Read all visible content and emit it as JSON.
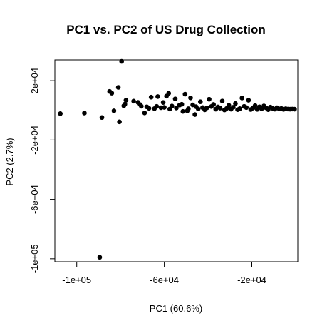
{
  "chart_data": {
    "type": "scatter",
    "title": "PC1 vs. PC2 of US Drug Collection",
    "xlabel": "PC1 (60.6%)",
    "ylabel": "PC2 (2.7%)",
    "xlim": [
      -110000,
      1000
    ],
    "ylim": [
      -102000,
      34000
    ],
    "xticks": [
      {
        "value": -100000,
        "label": "-1e+05"
      },
      {
        "value": -60000,
        "label": "-6e+04"
      },
      {
        "value": -20000,
        "label": "-2e+04"
      }
    ],
    "yticks": [
      {
        "value": 20000,
        "label": "2e+04"
      },
      {
        "value": -20000,
        "label": "-2e+04"
      },
      {
        "value": -60000,
        "label": "-6e+04"
      },
      {
        "value": -100000,
        "label": "-1e+05"
      }
    ],
    "grid": false,
    "legend": "none",
    "marker_color": "#000000",
    "series": [
      {
        "points": [
          [
            -107500,
            -2200
          ],
          [
            -96500,
            -1800
          ],
          [
            -89500,
            -99000
          ],
          [
            -88500,
            -4800
          ],
          [
            -85000,
            12800
          ],
          [
            -84000,
            11600
          ],
          [
            -83000,
            -300
          ],
          [
            -81000,
            15500
          ],
          [
            -80500,
            -7700
          ],
          [
            -79500,
            33000
          ],
          [
            -78500,
            3100
          ],
          [
            -78000,
            4200
          ],
          [
            -77500,
            6800
          ],
          [
            -74000,
            6200
          ],
          [
            -72000,
            5400
          ],
          [
            -71000,
            3900
          ],
          [
            -70500,
            2800
          ],
          [
            -69000,
            -1700
          ],
          [
            -68000,
            2400
          ],
          [
            -67000,
            1400
          ],
          [
            -66000,
            8900
          ],
          [
            -64500,
            1200
          ],
          [
            -63500,
            2700
          ],
          [
            -63000,
            9300
          ],
          [
            -61500,
            1800
          ],
          [
            -60500,
            5300
          ],
          [
            -60000,
            2000
          ],
          [
            -59000,
            9600
          ],
          [
            -58000,
            11500
          ],
          [
            -57500,
            900
          ],
          [
            -56500,
            2900
          ],
          [
            -55000,
            7700
          ],
          [
            -54500,
            1600
          ],
          [
            -53000,
            3600
          ],
          [
            -52000,
            4100
          ],
          [
            -51500,
            -700
          ],
          [
            -50500,
            10900
          ],
          [
            -49500,
            -300
          ],
          [
            -49000,
            1100
          ],
          [
            -48000,
            8400
          ],
          [
            -47000,
            3700
          ],
          [
            -46000,
            -2800
          ],
          [
            -45500,
            2500
          ],
          [
            -44500,
            1000
          ],
          [
            -43500,
            5800
          ],
          [
            -42500,
            1900
          ],
          [
            -41500,
            400
          ],
          [
            -40500,
            1700
          ],
          [
            -39500,
            7500
          ],
          [
            -38500,
            2600
          ],
          [
            -37500,
            4000
          ],
          [
            -36500,
            800
          ],
          [
            -35500,
            2300
          ],
          [
            -34500,
            1500
          ],
          [
            -33500,
            6300
          ],
          [
            -32500,
            300
          ],
          [
            -31500,
            1300
          ],
          [
            -30500,
            3400
          ],
          [
            -29500,
            800
          ],
          [
            -28500,
            2100
          ],
          [
            -27500,
            4600
          ],
          [
            -26500,
            500
          ],
          [
            -25500,
            1200
          ],
          [
            -24500,
            8300
          ],
          [
            -23500,
            2700
          ],
          [
            -22500,
            1900
          ],
          [
            -21500,
            6800
          ],
          [
            -20500,
            600
          ],
          [
            -19500,
            1500
          ],
          [
            -18500,
            3200
          ],
          [
            -17500,
            700
          ],
          [
            -16500,
            2400
          ],
          [
            -15500,
            1100
          ],
          [
            -14500,
            3000
          ],
          [
            -13500,
            1700
          ],
          [
            -12500,
            500
          ],
          [
            -11500,
            2200
          ],
          [
            -10500,
            1400
          ],
          [
            -9500,
            800
          ],
          [
            -8500,
            1800
          ],
          [
            -7500,
            1000
          ],
          [
            -6500,
            1300
          ],
          [
            -5500,
            700
          ],
          [
            -4500,
            1100
          ],
          [
            -3500,
            900
          ],
          [
            -2500,
            800
          ],
          [
            -1500,
            900
          ],
          [
            -500,
            800
          ]
        ]
      }
    ]
  }
}
